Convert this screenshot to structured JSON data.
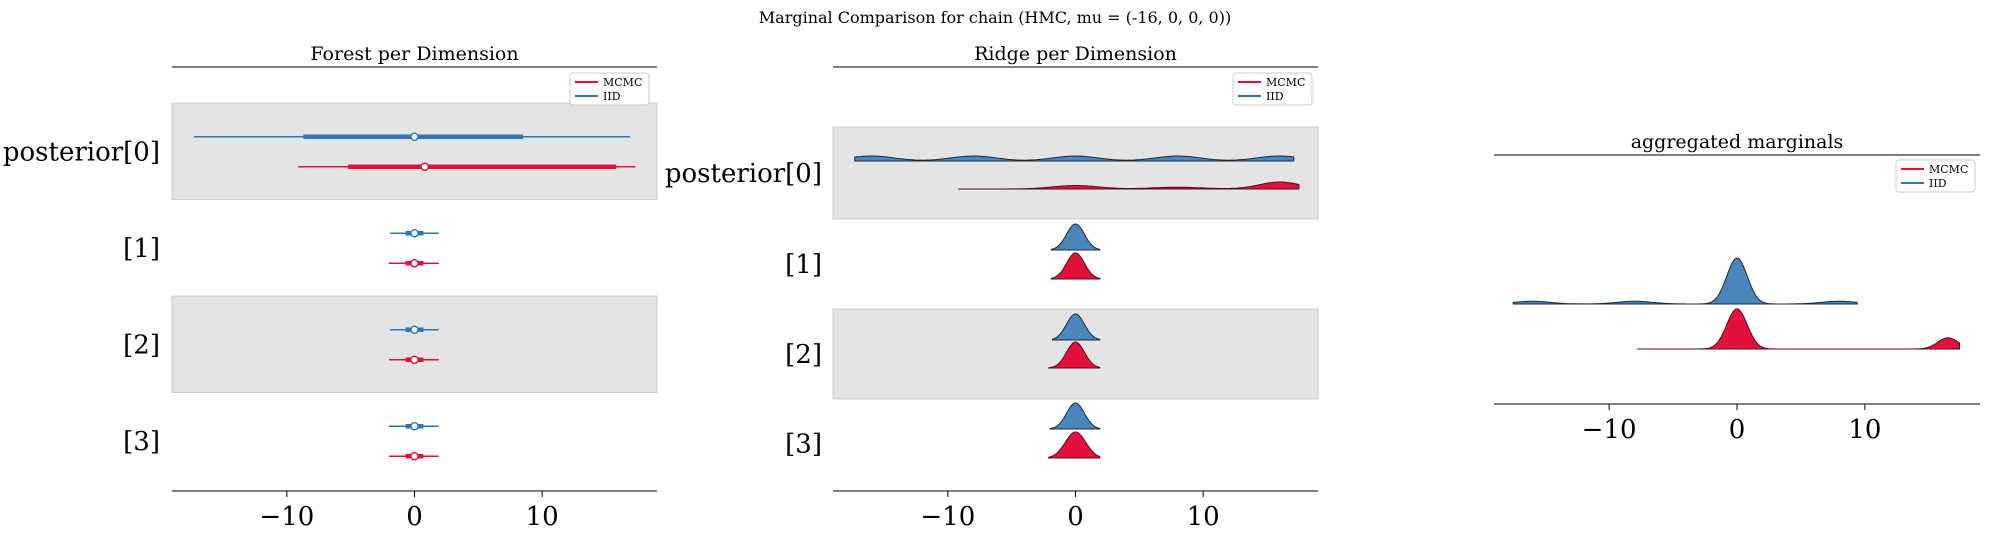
{
  "suptitle": "Marginal Comparison for chain (HMC, mu = (-16, 0, 0, 0))",
  "colors": {
    "mcmc": "#e2103c",
    "iid": "#2f74b5",
    "iid_fill": "#4a86b9",
    "mcmc_fill": "#e2103c",
    "band": "#e4e4e4"
  },
  "chart_data": [
    {
      "type": "forest",
      "title": "Forest per Dimension",
      "xlim": [
        -19,
        19
      ],
      "xticks": [
        -10,
        0,
        10
      ],
      "xtick_labels": [
        "−10",
        "0",
        "10"
      ],
      "rows": [
        "posterior[0]",
        "[1]",
        "[2]",
        "[3]"
      ],
      "legend": [
        "MCMC",
        "IID"
      ],
      "legend_loc": "upper right",
      "series": [
        {
          "name": "MCMC",
          "intervals": [
            {
              "row": 0,
              "hdi_full": [
                -9.1,
                17.3
              ],
              "hdi_iqr": [
                -5.2,
                15.8
              ],
              "point": 0.8
            },
            {
              "row": 1,
              "hdi_full": [
                -2.0,
                1.9
              ],
              "hdi_iqr": [
                -0.7,
                0.7
              ],
              "point": 0.0
            },
            {
              "row": 2,
              "hdi_full": [
                -2.0,
                1.9
              ],
              "hdi_iqr": [
                -0.7,
                0.7
              ],
              "point": 0.0
            },
            {
              "row": 3,
              "hdi_full": [
                -2.0,
                1.9
              ],
              "hdi_iqr": [
                -0.7,
                0.7
              ],
              "point": 0.0
            }
          ]
        },
        {
          "name": "IID",
          "intervals": [
            {
              "row": 0,
              "hdi_full": [
                -17.3,
                16.9
              ],
              "hdi_iqr": [
                -8.7,
                8.5
              ],
              "point": 0.0
            },
            {
              "row": 1,
              "hdi_full": [
                -1.9,
                1.9
              ],
              "hdi_iqr": [
                -0.7,
                0.7
              ],
              "point": 0.0
            },
            {
              "row": 2,
              "hdi_full": [
                -1.9,
                1.9
              ],
              "hdi_iqr": [
                -0.7,
                0.7
              ],
              "point": 0.0
            },
            {
              "row": 3,
              "hdi_full": [
                -2.0,
                1.9
              ],
              "hdi_iqr": [
                -0.7,
                0.7
              ],
              "point": 0.0
            }
          ]
        }
      ]
    },
    {
      "type": "ridge",
      "title": "Ridge per Dimension",
      "xlim": [
        -19,
        19
      ],
      "xticks": [
        -10,
        0,
        10
      ],
      "xtick_labels": [
        "−10",
        "0",
        "10"
      ],
      "rows": [
        "posterior[0]",
        "[1]",
        "[2]",
        "[3]"
      ],
      "legend": [
        "MCMC",
        "IID"
      ],
      "legend_loc": "upper right",
      "series": [
        {
          "name": "MCMC",
          "ridges": [
            {
              "row": 0,
              "range": [
                -9.2,
                17.5
              ],
              "peaks": [
                [
                  0,
                  1.8,
                  0.5
                ],
                [
                  16,
                  1.6,
                  1.0
                ],
                [
                  8,
                  2.0,
                  0.25
                ]
              ]
            },
            {
              "row": 1,
              "range": [
                -1.9,
                1.9
              ],
              "peaks": [
                [
                  0,
                  0.7,
                  1.0
                ]
              ]
            },
            {
              "row": 2,
              "range": [
                -2.1,
                1.9
              ],
              "peaks": [
                [
                  0,
                  0.7,
                  1.0
                ]
              ]
            },
            {
              "row": 3,
              "range": [
                -2.1,
                1.9
              ],
              "peaks": [
                [
                  0,
                  0.8,
                  1.0
                ]
              ]
            }
          ]
        },
        {
          "name": "IID",
          "ridges": [
            {
              "row": 0,
              "range": [
                -17.3,
                17.1
              ],
              "peaks": [
                [
                  -16,
                  1.8,
                  0.6
                ],
                [
                  -8,
                  1.8,
                  0.6
                ],
                [
                  0,
                  1.8,
                  0.6
                ],
                [
                  8,
                  1.8,
                  0.6
                ],
                [
                  16,
                  1.8,
                  0.6
                ]
              ]
            },
            {
              "row": 1,
              "range": [
                -1.9,
                1.9
              ],
              "peaks": [
                [
                  0,
                  0.7,
                  1.0
                ]
              ]
            },
            {
              "row": 2,
              "range": [
                -1.8,
                1.9
              ],
              "peaks": [
                [
                  0,
                  0.7,
                  1.0
                ]
              ]
            },
            {
              "row": 3,
              "range": [
                -2.0,
                1.9
              ],
              "peaks": [
                [
                  0,
                  0.7,
                  1.0
                ]
              ]
            }
          ]
        }
      ]
    },
    {
      "type": "ridge",
      "title": "aggregated marginals",
      "xlim": [
        -19,
        19
      ],
      "xticks": [
        -10,
        0,
        10
      ],
      "xtick_labels": [
        "−10",
        "0",
        "10"
      ],
      "legend": [
        "MCMC",
        "IID"
      ],
      "legend_loc": "upper right",
      "series": [
        {
          "name": "IID",
          "range": [
            -17.5,
            9.4
          ],
          "peaks": [
            [
              0,
              0.8,
              1.0
            ],
            [
              -16,
              1.4,
              0.06
            ],
            [
              -8,
              1.4,
              0.06
            ],
            [
              8,
              1.4,
              0.06
            ]
          ]
        },
        {
          "name": "MCMC",
          "range": [
            -7.8,
            17.4
          ],
          "peaks": [
            [
              0,
              0.8,
              1.0
            ],
            [
              16.5,
              0.8,
              0.28
            ]
          ]
        }
      ]
    }
  ]
}
